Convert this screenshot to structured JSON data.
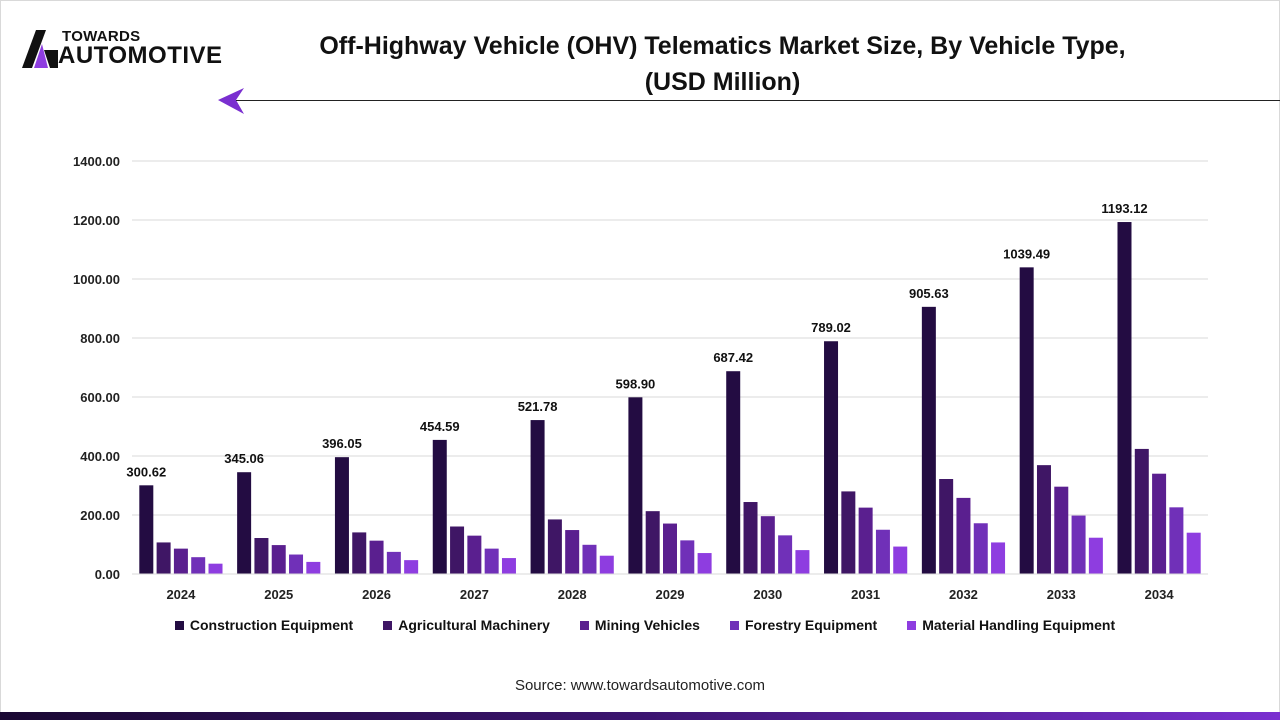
{
  "logo": {
    "line1": "TOWARDS",
    "line2": "AUTOMOTIVE"
  },
  "source": "Source: www.towardsautomotive.com",
  "chart_data": {
    "type": "bar",
    "title": "Off-Highway Vehicle (OHV) Telematics Market Size, By Vehicle Type, (USD Million)",
    "title_line1": "Off-Highway Vehicle (OHV) Telematics Market Size, By Vehicle Type,",
    "title_line2": "(USD Million)",
    "xlabel": "",
    "ylabel": "",
    "ylim": [
      0,
      1400
    ],
    "yticks": [
      "0.00",
      "200.00",
      "400.00",
      "600.00",
      "800.00",
      "1000.00",
      "1200.00",
      "1400.00"
    ],
    "grid": true,
    "legend_position": "bottom",
    "categories": [
      "2024",
      "2025",
      "2026",
      "2027",
      "2028",
      "2029",
      "2030",
      "2031",
      "2032",
      "2033",
      "2034"
    ],
    "series": [
      {
        "name": "Construction Equipment",
        "color": "#230c42",
        "values": [
          300.62,
          345.06,
          396.05,
          454.59,
          521.78,
          598.9,
          687.42,
          789.02,
          905.63,
          1039.49,
          1193.12
        ],
        "labels": [
          "300.62",
          "345.06",
          "396.05",
          "454.59",
          "521.78",
          "598.90",
          "687.42",
          "789.02",
          "905.63",
          "1039.49",
          "1193.12"
        ]
      },
      {
        "name": "Agricultural Machinery",
        "color": "#3f1665",
        "values": [
          107,
          122,
          141,
          161,
          185,
          213,
          244,
          280,
          322,
          369,
          424
        ]
      },
      {
        "name": "Mining Vehicles",
        "color": "#5a1f8f",
        "values": [
          86,
          98,
          113,
          130,
          149,
          171,
          196,
          225,
          258,
          296,
          340
        ]
      },
      {
        "name": "Forestry Equipment",
        "color": "#7030b8",
        "values": [
          57,
          66,
          75,
          86,
          99,
          114,
          131,
          150,
          172,
          198,
          226
        ]
      },
      {
        "name": "Material Handling Equipment",
        "color": "#8e3de0",
        "values": [
          35,
          41,
          47,
          54,
          62,
          71,
          81,
          93,
          107,
          123,
          140
        ]
      }
    ]
  }
}
